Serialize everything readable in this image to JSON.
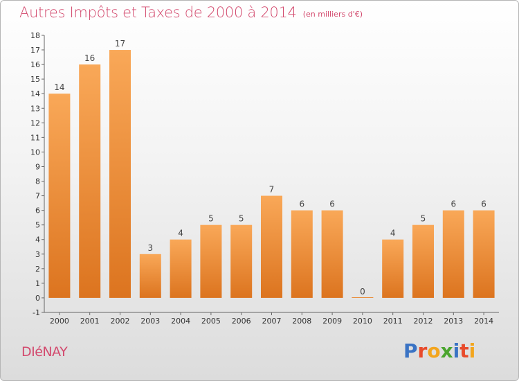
{
  "header": {
    "title": "Autres Impôts et Taxes de 2000 à 2014",
    "subtitle": "(en milliers d'€)"
  },
  "footer": {
    "place": "DIéNAY",
    "logo_text": "Proxiti",
    "logo_colors": [
      "#3a73c4",
      "#e84b2c",
      "#f3a51d",
      "#4aa52e",
      "#3a73c4",
      "#e84b2c",
      "#f3a51d"
    ]
  },
  "colors": {
    "title": "#d34a6e",
    "bar_fill_top": "#f7a95b",
    "bar_fill_bottom": "#d96e1f",
    "axis": "#666666"
  },
  "chart_data": {
    "type": "bar",
    "title": "Autres Impôts et Taxes de 2000 à 2014",
    "subtitle": "(en milliers d'€)",
    "xlabel": "",
    "ylabel": "",
    "categories": [
      "2000",
      "2001",
      "2002",
      "2003",
      "2004",
      "2005",
      "2006",
      "2007",
      "2008",
      "2009",
      "2010",
      "2011",
      "2012",
      "2013",
      "2014"
    ],
    "values": [
      14,
      16,
      17,
      3,
      4,
      5,
      5,
      7,
      6,
      6,
      0,
      4,
      5,
      6,
      6
    ],
    "data_labels": [
      "14",
      "16",
      "17",
      "3",
      "4",
      "5",
      "5",
      "7",
      "6",
      "6",
      "0",
      "4",
      "5",
      "6",
      "6"
    ],
    "ylim": [
      -1,
      18
    ],
    "yticks": [
      -1,
      0,
      1,
      2,
      3,
      4,
      5,
      6,
      7,
      8,
      9,
      10,
      11,
      12,
      13,
      14,
      15,
      16,
      17,
      18
    ],
    "grid": false,
    "legend": "none"
  }
}
